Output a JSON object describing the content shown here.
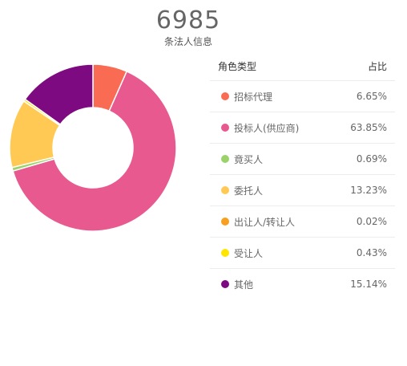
{
  "header": {
    "total": "6985",
    "subtitle": "条法人信息"
  },
  "legend": {
    "col_role": "角色类型",
    "col_share": "占比"
  },
  "chart_data": {
    "type": "pie",
    "title": "",
    "categories": [
      "招标代理",
      "投标人(供应商)",
      "竟买人",
      "委托人",
      "出让人/转让人",
      "受让人",
      "其他"
    ],
    "values": [
      6.65,
      63.85,
      0.69,
      13.23,
      0.02,
      0.43,
      15.14
    ],
    "labels": [
      "6.65%",
      "63.85%",
      "0.69%",
      "13.23%",
      "0.02%",
      "0.43%",
      "15.14%"
    ],
    "colors": [
      "#f96c53",
      "#e85a8f",
      "#9bd36a",
      "#ffc953",
      "#f79f1f",
      "#ffe600",
      "#7d0a80"
    ],
    "legend_position": "right"
  }
}
